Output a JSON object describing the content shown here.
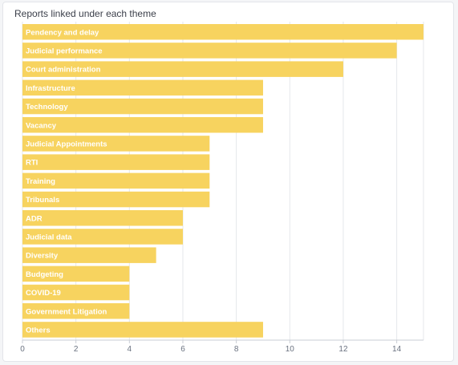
{
  "chart_data": {
    "type": "bar",
    "orientation": "horizontal",
    "title": "Reports linked under each theme",
    "xlabel": "",
    "ylabel": "",
    "categories": [
      "Pendency and delay",
      "Judicial performance",
      "Court administration",
      "Infrastructure",
      "Technology",
      "Vacancy",
      "Judicial Appointments",
      "RTI",
      "Training",
      "Tribunals",
      "ADR",
      "Judicial data",
      "Diversity",
      "Budgeting",
      "COVID-19",
      "Government Litigation",
      "Others"
    ],
    "values": [
      15,
      14,
      12,
      9,
      9,
      9,
      7,
      7,
      7,
      7,
      6,
      6,
      5,
      4,
      4,
      4,
      9
    ],
    "xlim": [
      0,
      15
    ],
    "xticks": [
      "0",
      "2",
      "4",
      "6",
      "8",
      "10",
      "12",
      "14"
    ],
    "grid": true,
    "bar_color": "#f7d35f",
    "grid_color": "#e5e7eb"
  }
}
